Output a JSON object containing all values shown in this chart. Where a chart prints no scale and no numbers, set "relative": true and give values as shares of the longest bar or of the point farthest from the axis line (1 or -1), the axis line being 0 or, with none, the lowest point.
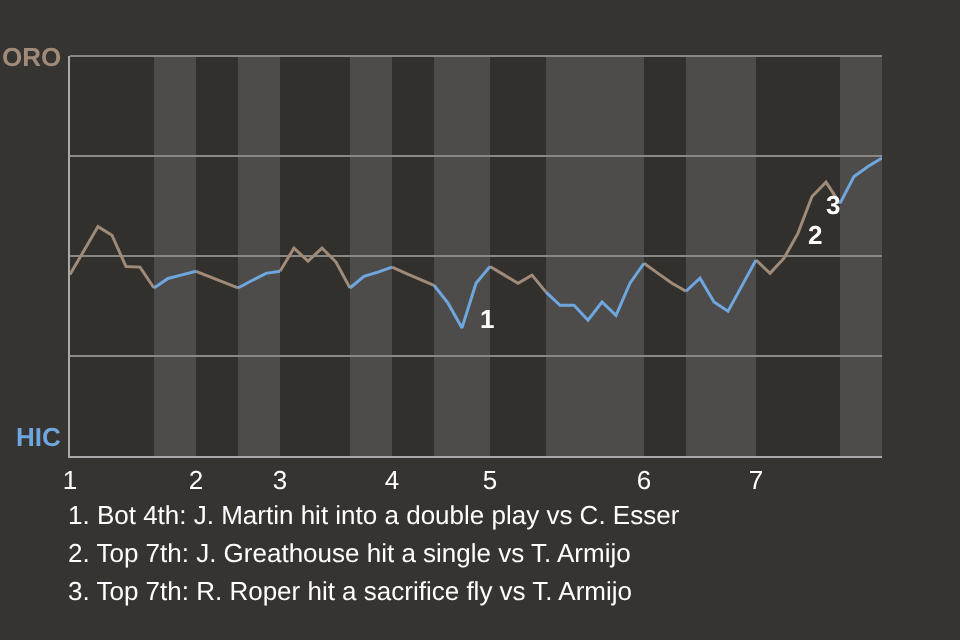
{
  "chart_data": {
    "type": "line",
    "relative": true,
    "categories": [
      "1",
      null,
      null,
      null,
      null,
      null,
      null,
      null,
      null,
      "2",
      null,
      null,
      null,
      null,
      null,
      "3",
      null,
      null,
      null,
      null,
      null,
      null,
      null,
      "4",
      null,
      null,
      null,
      null,
      null,
      null,
      "5",
      null,
      null,
      null,
      null,
      null,
      null,
      null,
      null,
      null,
      null,
      "6",
      null,
      null,
      null,
      null,
      null,
      null,
      null,
      "7",
      null,
      null,
      null,
      null,
      null,
      null,
      null,
      null,
      null
    ],
    "series": [
      {
        "color": "#a08a78",
        "values": [
          0.609,
          0.69,
          0.77,
          0.741,
          0.636,
          0.634,
          0.564,
          null,
          null,
          0.62,
          0.601,
          0.583,
          0.564,
          null,
          null,
          0.62,
          0.698,
          0.654,
          0.698,
          0.651,
          0.564,
          null,
          null,
          0.634,
          0.613,
          0.593,
          0.573,
          null,
          null,
          null,
          0.636,
          0.608,
          0.58,
          0.607,
          0.55,
          null,
          null,
          null,
          null,
          null,
          null,
          0.647,
          0.613,
          0.58,
          0.553,
          null,
          null,
          null,
          null,
          0.658,
          0.613,
          0.664,
          0.748,
          0.871,
          0.919,
          0.848,
          null,
          null,
          null
        ]
      },
      {
        "color": "#6ea6dd",
        "values": [
          null,
          null,
          null,
          null,
          null,
          null,
          0.564,
          0.596,
          0.608,
          0.62,
          null,
          null,
          0.564,
          0.589,
          0.613,
          0.62,
          null,
          null,
          null,
          null,
          0.564,
          0.603,
          0.617,
          0.634,
          null,
          null,
          0.573,
          0.513,
          0.43,
          0.58,
          0.636,
          null,
          null,
          null,
          0.55,
          0.506,
          0.506,
          0.456,
          0.517,
          0.472,
          0.58,
          0.647,
          null,
          null,
          0.553,
          0.597,
          0.517,
          0.486,
          0.572,
          0.658,
          null,
          null,
          null,
          null,
          null,
          0.848,
          0.938,
          0.972,
          1
        ]
      }
    ],
    "ref_lines": [
      {
        "axis": "y",
        "value": 0.336,
        "color": "#8a8885"
      },
      {
        "axis": "y",
        "value": 0.671,
        "color": "#8a8885"
      },
      {
        "axis": "y",
        "value": 1.007,
        "color": "#8a8885"
      }
    ],
    "marker": "none",
    "line_style": "solid",
    "annotations": [
      "ORO",
      "HIC",
      "1",
      "2",
      "3",
      "1. Bot 4th: J. Martin hit into a double play vs C. Esser",
      "2. Top 7th: J. Greathouse hit a single vs T. Armijo",
      "3. Top 7th: R. Roper hit a sacrifice fly vs T. Armijo"
    ]
  }
}
